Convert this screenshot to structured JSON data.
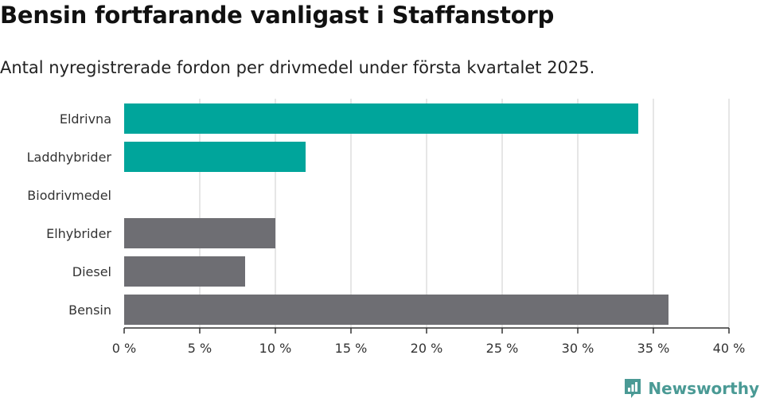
{
  "header": {
    "title": "Bensin fortfarande vanligast i Staffanstorp",
    "subtitle": "Antal nyregistrerade fordon per drivmedel under första kvartalet 2025."
  },
  "logo": {
    "text": "Newsworthy",
    "icon": "newsworthy-logo-icon"
  },
  "colors": {
    "electric": "#00a59b",
    "other": "#6e6e73",
    "grid": "#dddddd",
    "axis": "#333333"
  },
  "chart_data": {
    "type": "bar",
    "orientation": "horizontal",
    "title": "Bensin fortfarande vanligast i Staffanstorp",
    "subtitle": "Antal nyregistrerade fordon per drivmedel under första kvartalet 2025.",
    "categories": [
      "Eldrivna",
      "Laddhybrider",
      "Biodrivmedel",
      "Elhybrider",
      "Diesel",
      "Bensin"
    ],
    "values": [
      34,
      12,
      0,
      10,
      8,
      36
    ],
    "unit": "%",
    "bar_colors": [
      "electric",
      "electric",
      "other",
      "other",
      "other",
      "other"
    ],
    "xlim": [
      0,
      40
    ],
    "x_ticks": [
      0,
      5,
      10,
      15,
      20,
      25,
      30,
      35,
      40
    ],
    "x_tick_labels": [
      "0 %",
      "5 %",
      "10 %",
      "15 %",
      "20 %",
      "25 %",
      "30 %",
      "35 %",
      "40 %"
    ],
    "grid": true,
    "legend": false
  }
}
